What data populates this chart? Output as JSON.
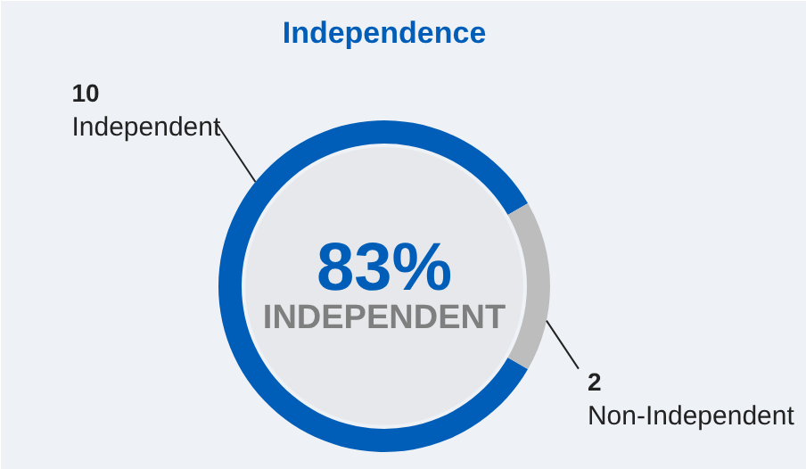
{
  "chart_data": {
    "type": "donut",
    "title": "Independence",
    "categories": [
      "Independent",
      "Non-Independent"
    ],
    "values": [
      10,
      2
    ],
    "colors": [
      "#005eb8",
      "#bdbdbd"
    ],
    "data_labels": true,
    "annotations": [
      "83%",
      "INDEPENDENT"
    ]
  }
}
